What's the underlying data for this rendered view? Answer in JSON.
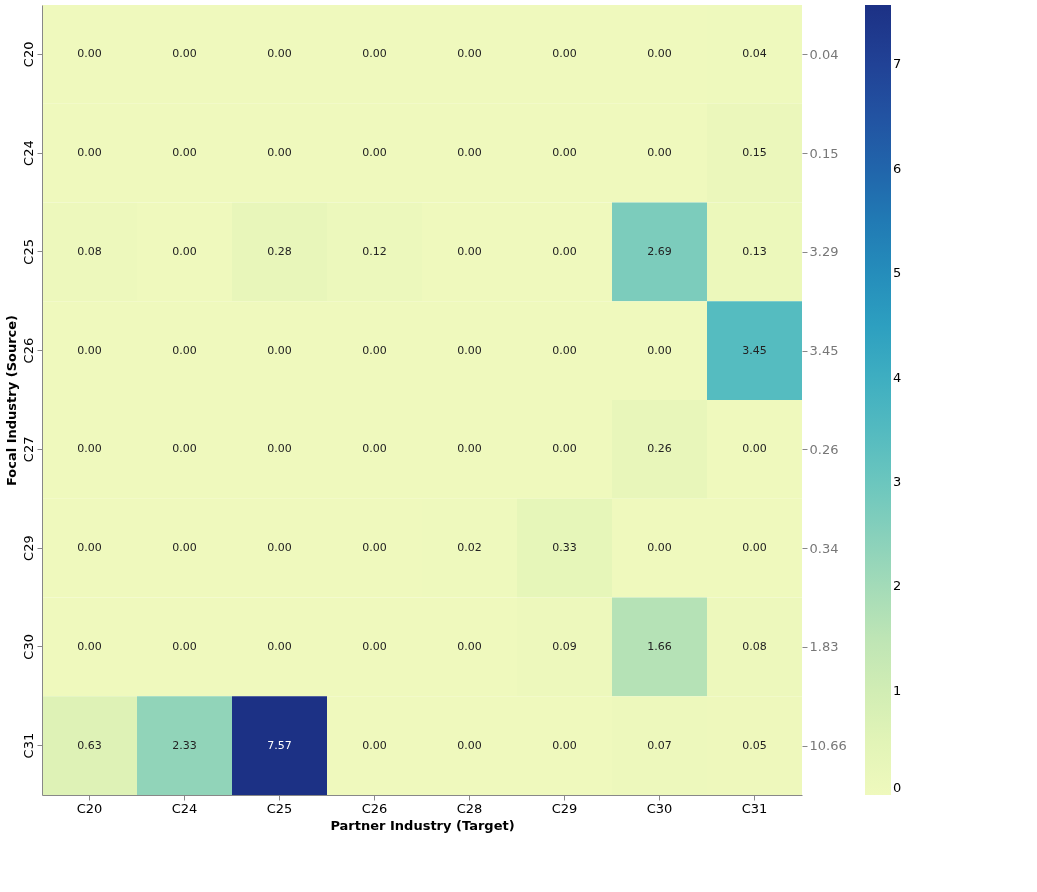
{
  "chart_data": {
    "type": "heatmap",
    "xlabel": "Partner Industry (Target)",
    "ylabel": "Focal Industry (Source)",
    "categories": [
      "C20",
      "C24",
      "C25",
      "C26",
      "C28",
      "C29",
      "C30",
      "C31"
    ],
    "y_categories": [
      "C20",
      "C24",
      "C25",
      "C26",
      "C27",
      "C29",
      "C30",
      "C31"
    ],
    "y2_categories": [
      "0.04",
      "0.15",
      "3.29",
      "3.45",
      "0.26",
      "0.34",
      "1.83",
      "10.66"
    ],
    "cells": [
      [
        0.0,
        0.0,
        0.0,
        0.0,
        0.0,
        0.0,
        0.0,
        0.04
      ],
      [
        0.0,
        0.0,
        0.0,
        0.0,
        0.0,
        0.0,
        0.0,
        0.15
      ],
      [
        0.08,
        0.0,
        0.28,
        0.12,
        0.0,
        0.0,
        2.69,
        0.13
      ],
      [
        0.0,
        0.0,
        0.0,
        0.0,
        0.0,
        0.0,
        0.0,
        3.45
      ],
      [
        0.0,
        0.0,
        0.0,
        0.0,
        0.0,
        0.0,
        0.26,
        0.0
      ],
      [
        0.0,
        0.0,
        0.0,
        0.0,
        0.02,
        0.33,
        0.0,
        0.0
      ],
      [
        0.0,
        0.0,
        0.0,
        0.0,
        0.0,
        0.09,
        1.66,
        0.08
      ],
      [
        0.63,
        2.33,
        7.57,
        0.0,
        0.0,
        0.0,
        0.07,
        0.05
      ]
    ],
    "cell_labels": [
      [
        "0.00",
        "0.00",
        "0.00",
        "0.00",
        "0.00",
        "0.00",
        "0.00",
        "0.04"
      ],
      [
        "0.00",
        "0.00",
        "0.00",
        "0.00",
        "0.00",
        "0.00",
        "0.00",
        "0.15"
      ],
      [
        "0.08",
        "0.00",
        "0.28",
        "0.12",
        "0.00",
        "0.00",
        "2.69",
        "0.13"
      ],
      [
        "0.00",
        "0.00",
        "0.00",
        "0.00",
        "0.00",
        "0.00",
        "0.00",
        "3.45"
      ],
      [
        "0.00",
        "0.00",
        "0.00",
        "0.00",
        "0.00",
        "0.00",
        "0.26",
        "0.00"
      ],
      [
        "0.00",
        "0.00",
        "0.00",
        "0.00",
        "0.02",
        "0.33",
        "0.00",
        "0.00"
      ],
      [
        "0.00",
        "0.00",
        "0.00",
        "0.00",
        "0.00",
        "0.09",
        "1.66",
        "0.08"
      ],
      [
        "0.63",
        "2.33",
        "7.57",
        "0.00",
        "0.00",
        "0.00",
        "0.07",
        "0.05"
      ]
    ],
    "clim": [
      0,
      7.57
    ],
    "cticks": [
      0,
      1,
      2,
      3,
      4,
      5,
      6,
      7
    ]
  }
}
